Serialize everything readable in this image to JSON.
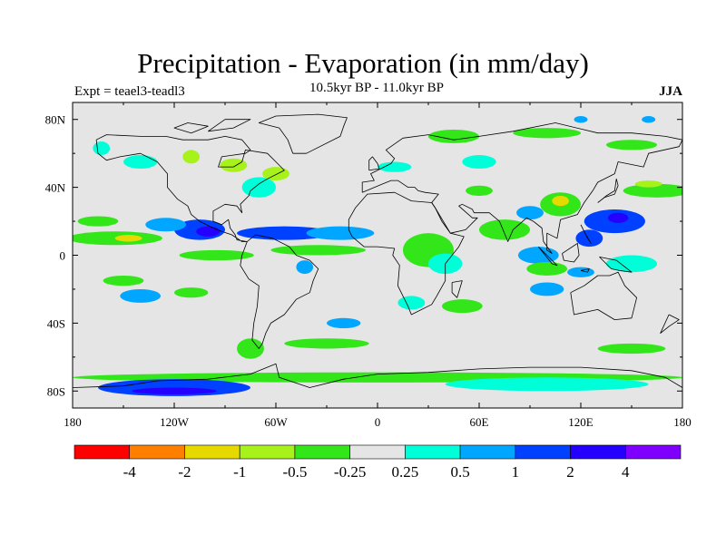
{
  "title": "Precipitation - Evaporation (in mm/day)",
  "subtitle": "10.5kyr BP - 11.0kyr BP",
  "left_label": "Expt = teael3-teadl3",
  "right_label": "JJA",
  "map": {
    "projection": "cylindrical equidistant",
    "lon_range": [
      -180,
      180
    ],
    "lat_range": [
      -90,
      90
    ],
    "background_color": "#e5e5e5",
    "x_ticks": [
      {
        "lon": -180,
        "label": "180"
      },
      {
        "lon": -120,
        "label": "120W"
      },
      {
        "lon": -60,
        "label": "60W"
      },
      {
        "lon": 0,
        "label": "0"
      },
      {
        "lon": 60,
        "label": "60E"
      },
      {
        "lon": 120,
        "label": "120E"
      },
      {
        "lon": 180,
        "label": "180"
      }
    ],
    "y_ticks": [
      {
        "lat": 80,
        "label": "80N"
      },
      {
        "lat": 40,
        "label": "40N"
      },
      {
        "lat": 0,
        "label": "0"
      },
      {
        "lat": -40,
        "label": "40S"
      },
      {
        "lat": -80,
        "label": "80S"
      }
    ]
  },
  "colorbar": {
    "colors": [
      "#ff0000",
      "#ff8000",
      "#e6d900",
      "#a6f21a",
      "#33e61a",
      "#e5e5e5",
      "#00ffd9",
      "#00a6ff",
      "#0040ff",
      "#2600ff",
      "#8000ff"
    ],
    "labels": [
      "-4",
      "-2",
      "-1",
      "-0.5",
      "-0.25",
      "0.25",
      "0.5",
      "1",
      "2",
      "4"
    ]
  },
  "field_patches": [
    {
      "level": 6,
      "lon": -163,
      "lat": 63,
      "rlon": 5,
      "rlat": 4
    },
    {
      "level": 6,
      "lon": -140,
      "lat": 55,
      "rlon": 10,
      "rlat": 4
    },
    {
      "level": 3,
      "lon": -110,
      "lat": 58,
      "rlon": 5,
      "rlat": 4
    },
    {
      "level": 3,
      "lon": -85,
      "lat": 53,
      "rlon": 8,
      "rlat": 4
    },
    {
      "level": 6,
      "lon": -70,
      "lat": 40,
      "rlon": 10,
      "rlat": 6
    },
    {
      "level": 3,
      "lon": -60,
      "lat": 48,
      "rlon": 8,
      "rlat": 4
    },
    {
      "level": 4,
      "lon": -155,
      "lat": 10,
      "rlon": 28,
      "rlat": 4
    },
    {
      "level": 2,
      "lon": -147,
      "lat": 10,
      "rlon": 8,
      "rlat": 2
    },
    {
      "level": 4,
      "lon": -165,
      "lat": 20,
      "rlon": 12,
      "rlat": 3
    },
    {
      "level": 8,
      "lon": -105,
      "lat": 15,
      "rlon": 15,
      "rlat": 6
    },
    {
      "level": 9,
      "lon": -100,
      "lat": 14,
      "rlon": 7,
      "rlat": 3
    },
    {
      "level": 7,
      "lon": -125,
      "lat": 18,
      "rlon": 12,
      "rlat": 4
    },
    {
      "level": 8,
      "lon": -55,
      "lat": 13,
      "rlon": 28,
      "rlat": 4
    },
    {
      "level": 7,
      "lon": -22,
      "lat": 13,
      "rlon": 20,
      "rlat": 4
    },
    {
      "level": 4,
      "lon": -95,
      "lat": 0,
      "rlon": 22,
      "rlat": 3
    },
    {
      "level": 4,
      "lon": -35,
      "lat": 3,
      "rlon": 28,
      "rlat": 3
    },
    {
      "level": 7,
      "lon": -43,
      "lat": -7,
      "rlon": 5,
      "rlat": 4
    },
    {
      "level": 4,
      "lon": -150,
      "lat": -15,
      "rlon": 12,
      "rlat": 3
    },
    {
      "level": 7,
      "lon": -140,
      "lat": -24,
      "rlon": 12,
      "rlat": 4
    },
    {
      "level": 4,
      "lon": -110,
      "lat": -22,
      "rlon": 10,
      "rlat": 3
    },
    {
      "level": 7,
      "lon": -20,
      "lat": -40,
      "rlon": 10,
      "rlat": 3
    },
    {
      "level": 6,
      "lon": 20,
      "lat": -28,
      "rlon": 8,
      "rlat": 4
    },
    {
      "level": 4,
      "lon": 50,
      "lat": -30,
      "rlon": 12,
      "rlat": 4
    },
    {
      "level": 7,
      "lon": 100,
      "lat": -20,
      "rlon": 10,
      "rlat": 4
    },
    {
      "level": 4,
      "lon": -75,
      "lat": -55,
      "rlon": 8,
      "rlat": 6
    },
    {
      "level": 4,
      "lon": -30,
      "lat": -52,
      "rlon": 25,
      "rlat": 3
    },
    {
      "level": 4,
      "lon": 150,
      "lat": -55,
      "rlon": 20,
      "rlat": 3
    },
    {
      "level": 4,
      "lon": 0,
      "lat": -72,
      "rlon": 180,
      "rlat": 3
    },
    {
      "level": 8,
      "lon": -120,
      "lat": -78,
      "rlon": 45,
      "rlat": 5
    },
    {
      "level": 9,
      "lon": -120,
      "lat": -80,
      "rlon": 25,
      "rlat": 2
    },
    {
      "level": 6,
      "lon": 100,
      "lat": -76,
      "rlon": 60,
      "rlat": 4
    },
    {
      "level": 4,
      "lon": 30,
      "lat": 3,
      "rlon": 15,
      "rlat": 10
    },
    {
      "level": 6,
      "lon": 40,
      "lat": -5,
      "rlon": 10,
      "rlat": 6
    },
    {
      "level": 4,
      "lon": 75,
      "lat": 15,
      "rlon": 15,
      "rlat": 6
    },
    {
      "level": 7,
      "lon": 90,
      "lat": 25,
      "rlon": 8,
      "rlat": 4
    },
    {
      "level": 4,
      "lon": 108,
      "lat": 30,
      "rlon": 12,
      "rlat": 7
    },
    {
      "level": 2,
      "lon": 108,
      "lat": 32,
      "rlon": 5,
      "rlat": 3
    },
    {
      "level": 8,
      "lon": 140,
      "lat": 20,
      "rlon": 18,
      "rlat": 7
    },
    {
      "level": 9,
      "lon": 142,
      "lat": 22,
      "rlon": 6,
      "rlat": 3
    },
    {
      "level": 8,
      "lon": 125,
      "lat": 10,
      "rlon": 8,
      "rlat": 5
    },
    {
      "level": 4,
      "lon": 165,
      "lat": 38,
      "rlon": 20,
      "rlat": 4
    },
    {
      "level": 3,
      "lon": 160,
      "lat": 42,
      "rlon": 8,
      "rlat": 2
    },
    {
      "level": 7,
      "lon": 95,
      "lat": 0,
      "rlon": 12,
      "rlat": 5
    },
    {
      "level": 4,
      "lon": 100,
      "lat": -8,
      "rlon": 12,
      "rlat": 4
    },
    {
      "level": 7,
      "lon": 120,
      "lat": -10,
      "rlon": 8,
      "rlat": 3
    },
    {
      "level": 6,
      "lon": 150,
      "lat": -5,
      "rlon": 15,
      "rlat": 5
    },
    {
      "level": 4,
      "lon": 45,
      "lat": 70,
      "rlon": 15,
      "rlat": 4
    },
    {
      "level": 6,
      "lon": 60,
      "lat": 55,
      "rlon": 10,
      "rlat": 4
    },
    {
      "level": 4,
      "lon": 100,
      "lat": 72,
      "rlon": 20,
      "rlat": 3
    },
    {
      "level": 4,
      "lon": 150,
      "lat": 65,
      "rlon": 15,
      "rlat": 3
    },
    {
      "level": 6,
      "lon": 10,
      "lat": 52,
      "rlon": 10,
      "rlat": 3
    },
    {
      "level": 7,
      "lon": 120,
      "lat": 80,
      "rlon": 4,
      "rlat": 2
    },
    {
      "level": 7,
      "lon": 160,
      "lat": 80,
      "rlon": 4,
      "rlat": 2
    },
    {
      "level": 4,
      "lon": 60,
      "lat": 38,
      "rlon": 8,
      "rlat": 3
    }
  ],
  "coastlines": [
    [
      [
        -166,
        68
      ],
      [
        -160,
        71
      ],
      [
        -140,
        70
      ],
      [
        -125,
        70
      ],
      [
        -115,
        68
      ],
      [
        -100,
        68
      ],
      [
        -90,
        70
      ],
      [
        -80,
        68
      ],
      [
        -75,
        62
      ],
      [
        -78,
        60
      ],
      [
        -92,
        58
      ],
      [
        -94,
        52
      ],
      [
        -85,
        52
      ],
      [
        -80,
        55
      ],
      [
        -78,
        62
      ],
      [
        -65,
        60
      ],
      [
        -60,
        55
      ],
      [
        -55,
        50
      ],
      [
        -65,
        45
      ],
      [
        -70,
        42
      ],
      [
        -75,
        38
      ],
      [
        -76,
        35
      ],
      [
        -81,
        30
      ],
      [
        -80,
        25
      ],
      [
        -83,
        29
      ],
      [
        -90,
        30
      ],
      [
        -97,
        26
      ],
      [
        -97,
        20
      ],
      [
        -92,
        18
      ],
      [
        -88,
        21
      ],
      [
        -87,
        16
      ],
      [
        -84,
        12
      ],
      [
        -83,
        9
      ],
      [
        -77,
        8
      ],
      [
        -80,
        8
      ],
      [
        -86,
        12
      ],
      [
        -92,
        14
      ],
      [
        -97,
        16
      ],
      [
        -105,
        20
      ],
      [
        -110,
        24
      ],
      [
        -112,
        29
      ],
      [
        -118,
        33
      ],
      [
        -124,
        40
      ],
      [
        -124,
        48
      ],
      [
        -130,
        55
      ],
      [
        -140,
        60
      ],
      [
        -152,
        58
      ],
      [
        -160,
        56
      ],
      [
        -165,
        60
      ],
      [
        -166,
        68
      ]
    ],
    [
      [
        -77,
        8
      ],
      [
        -72,
        12
      ],
      [
        -62,
        10
      ],
      [
        -52,
        5
      ],
      [
        -48,
        0
      ],
      [
        -40,
        -3
      ],
      [
        -35,
        -8
      ],
      [
        -38,
        -15
      ],
      [
        -40,
        -22
      ],
      [
        -48,
        -26
      ],
      [
        -55,
        -35
      ],
      [
        -63,
        -40
      ],
      [
        -66,
        -46
      ],
      [
        -68,
        -52
      ],
      [
        -70,
        -55
      ],
      [
        -74,
        -50
      ],
      [
        -73,
        -40
      ],
      [
        -71,
        -30
      ],
      [
        -70,
        -18
      ],
      [
        -76,
        -14
      ],
      [
        -81,
        -6
      ],
      [
        -80,
        0
      ],
      [
        -77,
        8
      ]
    ],
    [
      [
        -50,
        60
      ],
      [
        -42,
        60
      ],
      [
        -22,
        70
      ],
      [
        -20,
        76
      ],
      [
        -18,
        81
      ],
      [
        -35,
        83
      ],
      [
        -60,
        82
      ],
      [
        -70,
        78
      ],
      [
        -58,
        75
      ],
      [
        -53,
        68
      ],
      [
        -50,
        60
      ]
    ],
    [
      [
        -17,
        15
      ],
      [
        -17,
        21
      ],
      [
        -13,
        28
      ],
      [
        -6,
        36
      ],
      [
        10,
        37
      ],
      [
        20,
        32
      ],
      [
        32,
        31
      ],
      [
        34,
        28
      ],
      [
        43,
        13
      ],
      [
        51,
        11
      ],
      [
        48,
        5
      ],
      [
        40,
        -5
      ],
      [
        40,
        -15
      ],
      [
        35,
        -24
      ],
      [
        32,
        -29
      ],
      [
        20,
        -35
      ],
      [
        18,
        -30
      ],
      [
        12,
        -18
      ],
      [
        13,
        -6
      ],
      [
        9,
        0
      ],
      [
        10,
        4
      ],
      [
        0,
        5
      ],
      [
        -8,
        5
      ],
      [
        -15,
        11
      ],
      [
        -17,
        15
      ]
    ],
    [
      [
        -9,
        37
      ],
      [
        -9,
        43
      ],
      [
        -2,
        44
      ],
      [
        -4,
        48
      ],
      [
        2,
        51
      ],
      [
        8,
        54
      ],
      [
        10,
        57
      ],
      [
        5,
        62
      ],
      [
        15,
        69
      ],
      [
        30,
        71
      ],
      [
        45,
        68
      ],
      [
        60,
        70
      ],
      [
        80,
        73
      ],
      [
        105,
        78
      ],
      [
        130,
        72
      ],
      [
        150,
        72
      ],
      [
        170,
        70
      ],
      [
        180,
        68
      ],
      [
        178,
        64
      ],
      [
        160,
        60
      ],
      [
        157,
        52
      ],
      [
        142,
        55
      ],
      [
        140,
        48
      ],
      [
        130,
        43
      ],
      [
        127,
        38
      ],
      [
        122,
        31
      ],
      [
        118,
        24
      ],
      [
        108,
        21
      ],
      [
        106,
        10
      ],
      [
        100,
        13
      ],
      [
        100,
        3
      ],
      [
        103,
        1
      ],
      [
        98,
        8
      ],
      [
        97,
        16
      ],
      [
        92,
        20
      ],
      [
        88,
        22
      ],
      [
        80,
        15
      ],
      [
        77,
        8
      ],
      [
        72,
        20
      ],
      [
        66,
        25
      ],
      [
        57,
        25
      ],
      [
        56,
        27
      ],
      [
        50,
        30
      ],
      [
        48,
        29
      ],
      [
        56,
        22
      ],
      [
        59,
        22
      ],
      [
        52,
        15
      ],
      [
        43,
        13
      ],
      [
        38,
        20
      ],
      [
        34,
        28
      ],
      [
        32,
        31
      ],
      [
        36,
        36
      ],
      [
        28,
        37
      ],
      [
        24,
        38
      ],
      [
        22,
        40
      ],
      [
        18,
        40
      ],
      [
        12,
        44
      ],
      [
        8,
        44
      ],
      [
        3,
        42
      ],
      [
        -9,
        37
      ]
    ],
    [
      [
        114,
        -22
      ],
      [
        122,
        -18
      ],
      [
        130,
        -12
      ],
      [
        137,
        -12
      ],
      [
        142,
        -10
      ],
      [
        146,
        -18
      ],
      [
        153,
        -25
      ],
      [
        150,
        -37
      ],
      [
        140,
        -38
      ],
      [
        130,
        -32
      ],
      [
        116,
        -35
      ],
      [
        114,
        -22
      ]
    ],
    [
      [
        -5,
        50
      ],
      [
        1,
        51
      ],
      [
        0,
        54
      ],
      [
        -3,
        58
      ],
      [
        -5,
        56
      ],
      [
        -5,
        50
      ]
    ],
    [
      [
        130,
        31
      ],
      [
        134,
        34
      ],
      [
        140,
        36
      ],
      [
        142,
        41
      ],
      [
        141,
        45
      ],
      [
        140,
        38
      ],
      [
        135,
        35
      ],
      [
        130,
        31
      ]
    ],
    [
      [
        95,
        5
      ],
      [
        100,
        0
      ],
      [
        106,
        -6
      ],
      [
        103,
        -5
      ],
      [
        95,
        5
      ]
    ],
    [
      [
        109,
        1
      ],
      [
        118,
        7
      ],
      [
        119,
        0
      ],
      [
        116,
        -4
      ],
      [
        110,
        -3
      ],
      [
        109,
        1
      ]
    ],
    [
      [
        131,
        -1
      ],
      [
        141,
        -3
      ],
      [
        150,
        -10
      ],
      [
        143,
        -9
      ],
      [
        138,
        -8
      ],
      [
        131,
        -1
      ]
    ],
    [
      [
        44,
        -16
      ],
      [
        50,
        -15
      ],
      [
        47,
        -25
      ],
      [
        44,
        -22
      ],
      [
        44,
        -16
      ]
    ],
    [
      [
        172,
        -35
      ],
      [
        178,
        -38
      ],
      [
        172,
        -42
      ],
      [
        167,
        -46
      ],
      [
        172,
        -35
      ]
    ],
    [
      [
        -180,
        -78
      ],
      [
        -150,
        -77
      ],
      [
        -130,
        -74
      ],
      [
        -100,
        -73
      ],
      [
        -75,
        -70
      ],
      [
        -60,
        -64
      ],
      [
        -58,
        -72
      ],
      [
        -40,
        -78
      ],
      [
        -20,
        -73
      ],
      [
        0,
        -70
      ],
      [
        30,
        -69
      ],
      [
        60,
        -67
      ],
      [
        90,
        -66
      ],
      [
        120,
        -66
      ],
      [
        150,
        -68
      ],
      [
        170,
        -72
      ],
      [
        180,
        -78
      ]
    ],
    [
      [
        -100,
        73
      ],
      [
        -85,
        75
      ],
      [
        -75,
        80
      ],
      [
        -90,
        80
      ],
      [
        -100,
        73
      ]
    ],
    [
      [
        -110,
        72
      ],
      [
        -120,
        75
      ],
      [
        -112,
        78
      ],
      [
        -100,
        76
      ],
      [
        -110,
        72
      ]
    ],
    [
      [
        120,
        -9
      ],
      [
        125,
        -8
      ],
      [
        124,
        -10
      ],
      [
        120,
        -9
      ]
    ],
    [
      [
        120,
        18
      ],
      [
        122,
        14
      ],
      [
        124,
        10
      ],
      [
        126,
        7
      ],
      [
        123,
        12
      ],
      [
        120,
        18
      ]
    ]
  ]
}
